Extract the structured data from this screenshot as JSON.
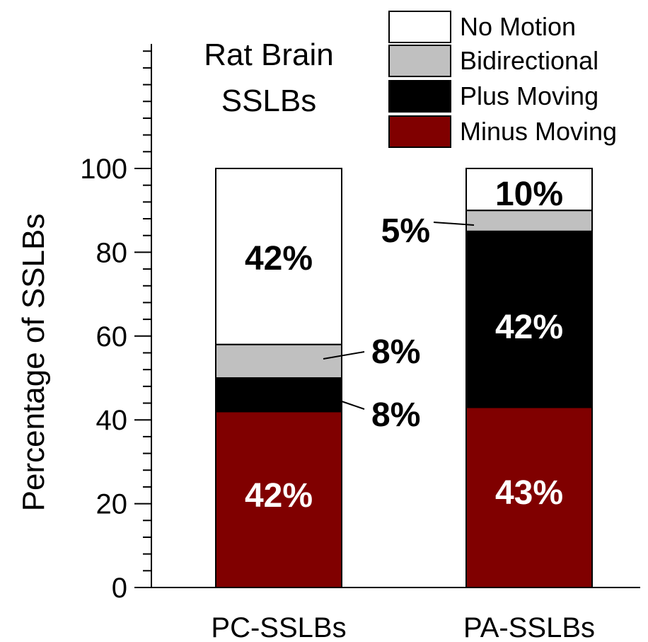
{
  "chart_data": {
    "type": "bar",
    "stacked": true,
    "title": "Rat Brain\nSSLBs",
    "xlabel": "",
    "ylabel": "Percentage  of  SSLBs",
    "ylim": [
      0,
      100
    ],
    "yticks": [
      "0",
      "20",
      "40",
      "60",
      "80",
      "100"
    ],
    "categories": [
      "PC-SSLBs",
      "PA-SSLBs"
    ],
    "series": [
      {
        "name": "Minus Moving",
        "color": "#800000",
        "values": [
          42,
          43
        ],
        "labels": [
          "42%",
          "43%"
        ]
      },
      {
        "name": "Plus Moving",
        "color": "#000000",
        "values": [
          8,
          42
        ],
        "labels": [
          "8%",
          "42%"
        ]
      },
      {
        "name": "Bidirectional",
        "color": "#c0c0c0",
        "values": [
          8,
          5
        ],
        "labels": [
          "8%",
          "5%"
        ]
      },
      {
        "name": "No Motion",
        "color": "#ffffff",
        "values": [
          42,
          10
        ],
        "labels": [
          "42%",
          "10%"
        ]
      }
    ],
    "legend": {
      "position": "top-right",
      "order": [
        "No Motion",
        "Bidirectional",
        "Plus Moving",
        "Minus Moving"
      ]
    },
    "grid": false
  }
}
